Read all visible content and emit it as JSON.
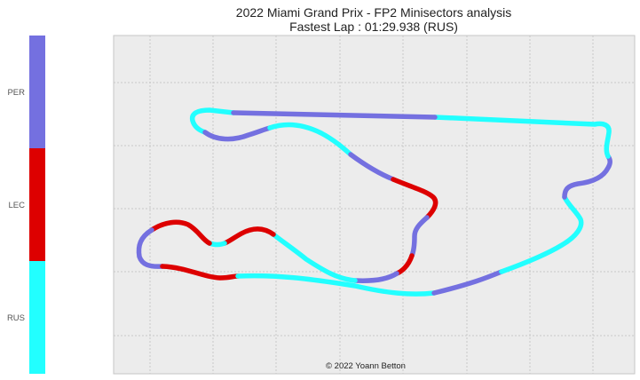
{
  "title_line1": "2022 Miami Grand Prix - FP2 Minisectors analysis",
  "title_line2": "Fastest Lap : 01:29.938 (RUS)",
  "copyright": "© 2022 Yoann Betton",
  "colors": {
    "PER": "#7470e0",
    "LEC": "#dd0000",
    "RUS": "#22ffff"
  },
  "chart_data": {
    "type": "track-map",
    "title": "2022 Miami Grand Prix - FP2 Minisectors analysis",
    "subtitle": "Fastest Lap : 01:29.938 (RUS)",
    "legend": [
      {
        "driver": "PER",
        "color": "#7470e0"
      },
      {
        "driver": "LEC",
        "color": "#dd0000"
      },
      {
        "driver": "RUS",
        "color": "#22ffff"
      }
    ],
    "grid": true,
    "segments": [
      {
        "driver": "RUS"
      },
      {
        "driver": "PER"
      },
      {
        "driver": "RUS"
      },
      {
        "driver": "PER"
      },
      {
        "driver": "LEC"
      },
      {
        "driver": "PER"
      },
      {
        "driver": "LEC"
      },
      {
        "driver": "PER"
      },
      {
        "driver": "RUS"
      },
      {
        "driver": "LEC"
      },
      {
        "driver": "RUS"
      },
      {
        "driver": "LEC"
      },
      {
        "driver": "PER"
      },
      {
        "driver": "LEC"
      },
      {
        "driver": "RUS"
      },
      {
        "driver": "PER"
      },
      {
        "driver": "RUS"
      },
      {
        "driver": "PER"
      },
      {
        "driver": "RUS"
      },
      {
        "driver": "PER"
      }
    ]
  }
}
